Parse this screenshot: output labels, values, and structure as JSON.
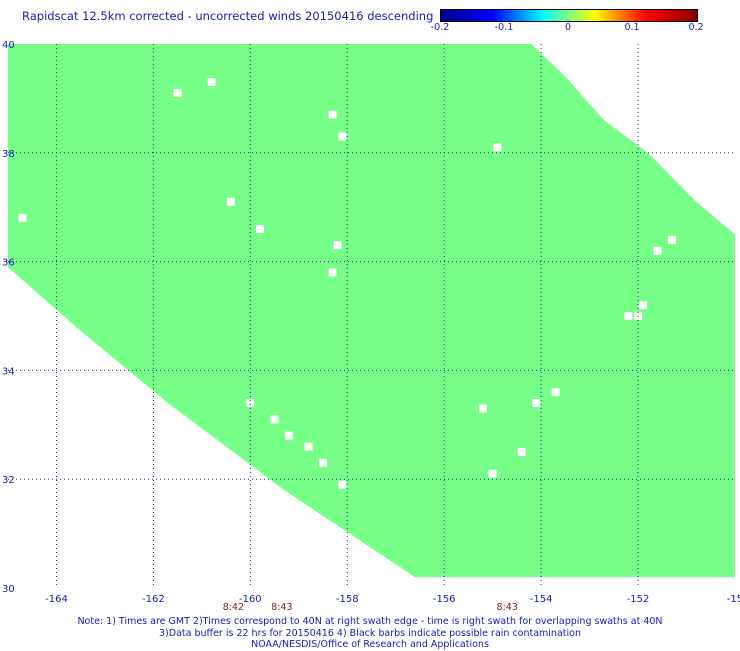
{
  "title": "Rapidscat 12.5km corrected - uncorrected winds 20150416 descending",
  "colorbar": {
    "labels": [
      "-0.2",
      "-0.1",
      "0",
      "0.1",
      "0.2"
    ],
    "colors": [
      "#00008b",
      "#0000ff",
      "#00ffff",
      "#ffff00",
      "#ff0000",
      "#8b0000"
    ]
  },
  "map": {
    "lon_range": [
      -165,
      -150
    ],
    "lat_range": [
      30,
      40
    ],
    "lon_ticks": [
      -164,
      -162,
      -160,
      -158,
      -156,
      -154,
      -152,
      -150
    ],
    "lon_tick_labels": [
      "-164",
      "-162",
      "-160",
      "-158",
      "-156",
      "-154",
      "-152",
      "-15"
    ],
    "lat_ticks": [
      30,
      32,
      34,
      36,
      38,
      40
    ],
    "lat_tick_labels": [
      "30",
      "32",
      "34",
      "36",
      "38",
      "40"
    ],
    "swath_color": "#77ff88",
    "grid_color": "#2c2c7a",
    "swath_boundary": [
      [
        -165,
        40
      ],
      [
        -154.2,
        40
      ],
      [
        -153.5,
        39.4
      ],
      [
        -152.7,
        38.6
      ],
      [
        -151.8,
        38.0
      ],
      [
        -150.8,
        37.1
      ],
      [
        -150,
        36.5
      ],
      [
        -150,
        30.2
      ],
      [
        -156.6,
        30.2
      ],
      [
        -159.3,
        31.8
      ],
      [
        -161.7,
        33.4
      ],
      [
        -163.6,
        34.8
      ],
      [
        -165,
        35.9
      ]
    ],
    "missing_cells": [
      [
        -161.5,
        39.1
      ],
      [
        -160.8,
        39.3
      ],
      [
        -158.3,
        38.7
      ],
      [
        -158.1,
        38.3
      ],
      [
        -154.9,
        38.1
      ],
      [
        -160.4,
        37.1
      ],
      [
        -159.8,
        36.6
      ],
      [
        -158.2,
        36.3
      ],
      [
        -158.3,
        35.8
      ],
      [
        -164.7,
        36.8
      ],
      [
        -151.3,
        36.4
      ],
      [
        -151.6,
        36.2
      ],
      [
        -152.2,
        35.0
      ],
      [
        -152.0,
        35.0
      ],
      [
        -151.9,
        35.2
      ],
      [
        -160.0,
        33.4
      ],
      [
        -159.5,
        33.1
      ],
      [
        -159.2,
        32.8
      ],
      [
        -158.8,
        32.6
      ],
      [
        -158.5,
        32.3
      ],
      [
        -158.1,
        31.9
      ],
      [
        -153.7,
        33.6
      ],
      [
        -154.1,
        33.4
      ],
      [
        -155.2,
        33.3
      ],
      [
        -154.4,
        32.5
      ],
      [
        -155.0,
        32.1
      ]
    ],
    "swath_times": [
      {
        "lon": -160.35,
        "label": "8:42"
      },
      {
        "lon": -159.35,
        "label": "8:43"
      },
      {
        "lon": -154.7,
        "label": "8:43"
      }
    ]
  },
  "notes": [
    "Note: 1) Times are GMT 2)Times correspond to 40N at right swath edge - time is right swath for overlapping swaths at 40N",
    "3)Data buffer is 22 hrs for 20150416 4) Black barbs indicate possible rain contamination",
    "NOAA/NESDIS/Office of Research and Applications"
  ]
}
